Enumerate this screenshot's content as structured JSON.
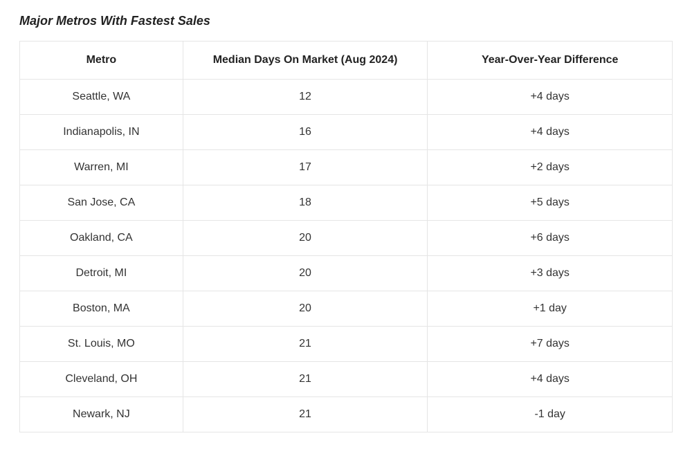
{
  "title": "Major Metros With Fastest Sales",
  "table": {
    "type": "table",
    "border_color": "#e5e5e5",
    "background_color": "#ffffff",
    "header_fontsize": 16,
    "header_fontweight": 700,
    "cell_fontsize": 16,
    "cell_fontweight": 400,
    "text_color": "#333333",
    "columns": [
      {
        "label": "Metro",
        "width_pct": 25,
        "align": "center"
      },
      {
        "label": "Median Days On Market (Aug 2024)",
        "width_pct": 37.5,
        "align": "center"
      },
      {
        "label": "Year-Over-Year Difference",
        "width_pct": 37.5,
        "align": "center"
      }
    ],
    "rows": [
      {
        "metro": "Seattle, WA",
        "days": "12",
        "yoy": "+4 days"
      },
      {
        "metro": "Indianapolis, IN",
        "days": "16",
        "yoy": "+4 days"
      },
      {
        "metro": "Warren, MI",
        "days": "17",
        "yoy": "+2 days"
      },
      {
        "metro": "San Jose, CA",
        "days": "18",
        "yoy": "+5 days"
      },
      {
        "metro": "Oakland, CA",
        "days": "20",
        "yoy": "+6 days"
      },
      {
        "metro": "Detroit, MI",
        "days": "20",
        "yoy": "+3 days"
      },
      {
        "metro": "Boston, MA",
        "days": "20",
        "yoy": "+1 day"
      },
      {
        "metro": "St. Louis, MO",
        "days": "21",
        "yoy": "+7 days"
      },
      {
        "metro": "Cleveland, OH",
        "days": "21",
        "yoy": "+4 days"
      },
      {
        "metro": "Newark, NJ",
        "days": "21",
        "yoy": "-1 day"
      }
    ]
  }
}
